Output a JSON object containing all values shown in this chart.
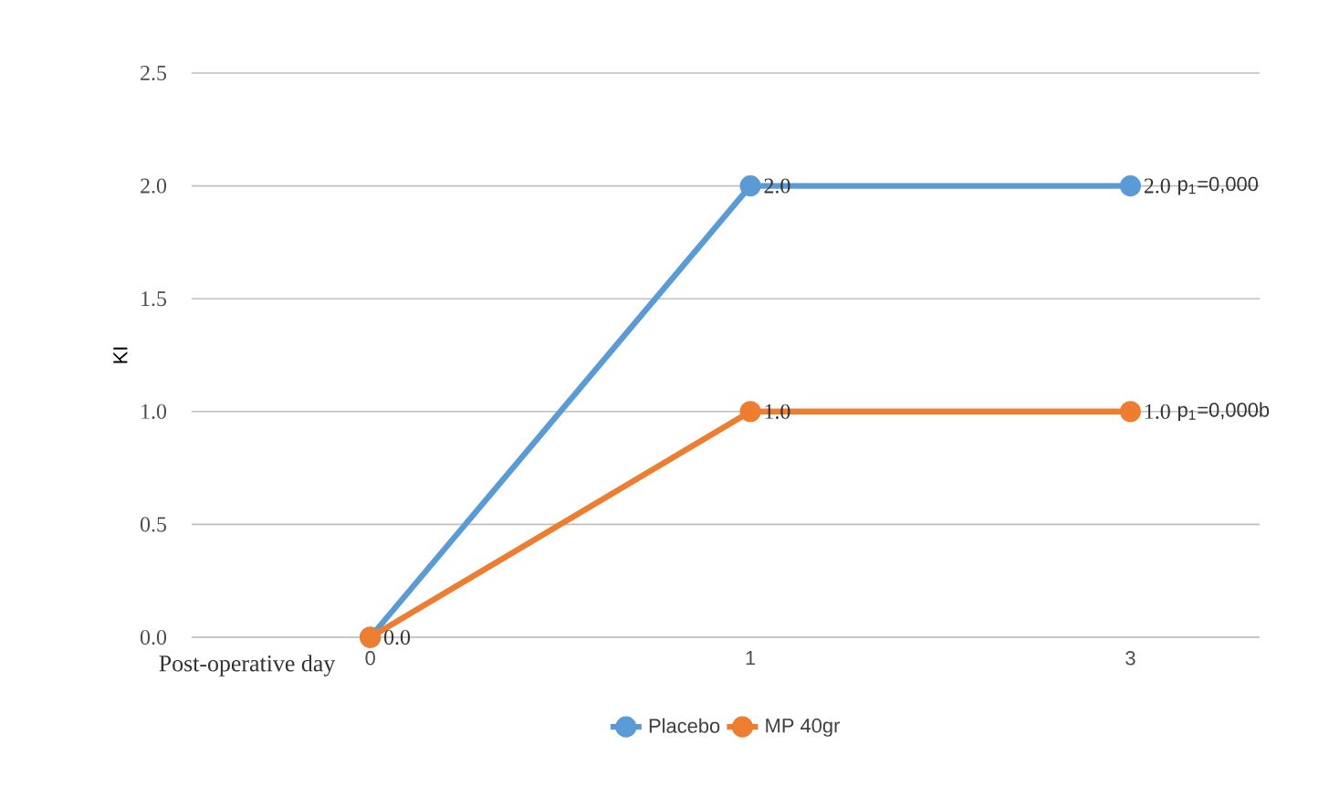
{
  "chart_data": {
    "type": "line",
    "ylabel": "KI",
    "xlabel": "Post-operative day",
    "categories": [
      "0",
      "1",
      "3"
    ],
    "series": [
      {
        "name": "Placebo",
        "color": "#5b9bd5",
        "values": [
          0.0,
          2.0,
          2.0
        ],
        "value_labels": [
          null,
          "2.0",
          "2.0"
        ]
      },
      {
        "name": "MP 40gr",
        "color": "#ed7d31",
        "values": [
          0.0,
          1.0,
          1.0
        ],
        "value_labels": [
          "0.0",
          "1.0",
          "1.0"
        ]
      }
    ],
    "ylim": [
      0,
      2.5
    ],
    "yticks": [
      {
        "value": 0,
        "label": "0.0"
      },
      {
        "value": 0.5,
        "label": "0.5"
      },
      {
        "value": 1,
        "label": "1.0"
      },
      {
        "value": 1.5,
        "label": "1.5"
      },
      {
        "value": 2,
        "label": "2.0"
      },
      {
        "value": 2.5,
        "label": "2.5"
      }
    ],
    "grid": "y",
    "legend": "bottom",
    "marker": "circle",
    "line_style": "solid",
    "annotations": [
      "p$_{1}$=0,000",
      "p$_{1}$=0,000b"
    ]
  }
}
